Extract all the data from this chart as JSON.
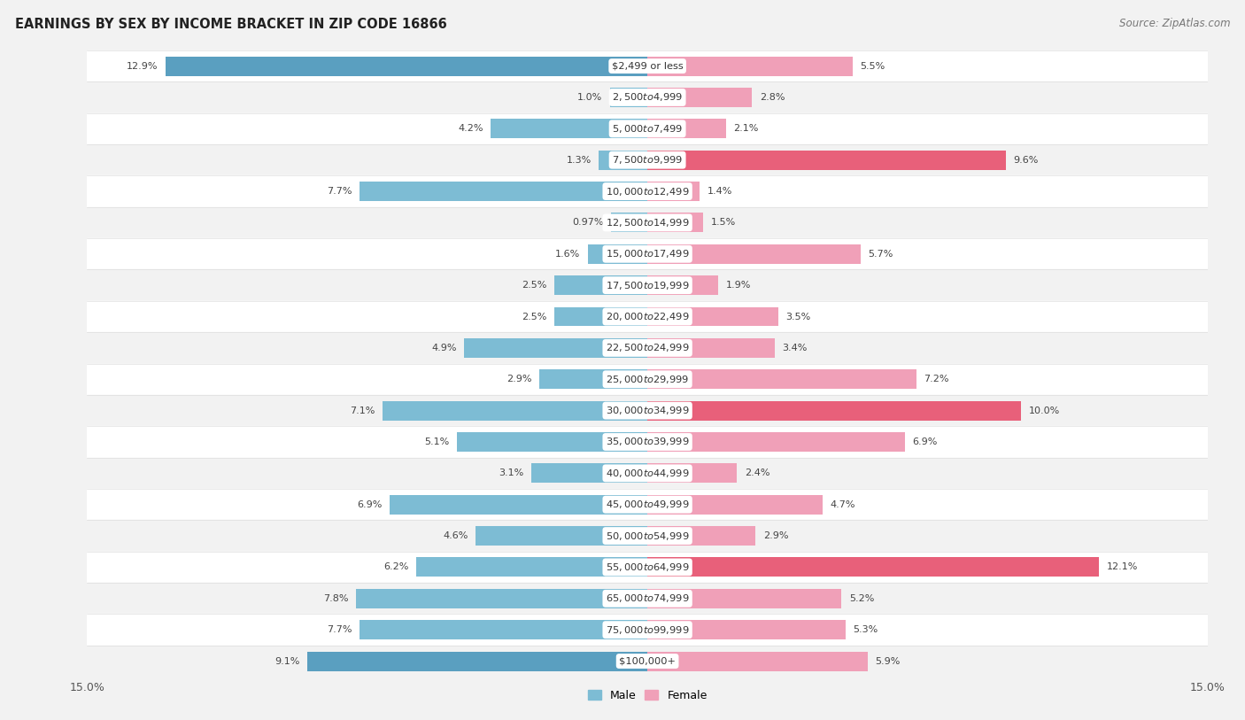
{
  "title": "EARNINGS BY SEX BY INCOME BRACKET IN ZIP CODE 16866",
  "source": "Source: ZipAtlas.com",
  "categories": [
    "$2,499 or less",
    "$2,500 to $4,999",
    "$5,000 to $7,499",
    "$7,500 to $9,999",
    "$10,000 to $12,499",
    "$12,500 to $14,999",
    "$15,000 to $17,499",
    "$17,500 to $19,999",
    "$20,000 to $22,499",
    "$22,500 to $24,999",
    "$25,000 to $29,999",
    "$30,000 to $34,999",
    "$35,000 to $39,999",
    "$40,000 to $44,999",
    "$45,000 to $49,999",
    "$50,000 to $54,999",
    "$55,000 to $64,999",
    "$65,000 to $74,999",
    "$75,000 to $99,999",
    "$100,000+"
  ],
  "male_values": [
    12.9,
    1.0,
    4.2,
    1.3,
    7.7,
    0.97,
    1.6,
    2.5,
    2.5,
    4.9,
    2.9,
    7.1,
    5.1,
    3.1,
    6.9,
    4.6,
    6.2,
    7.8,
    7.7,
    9.1
  ],
  "female_values": [
    5.5,
    2.8,
    2.1,
    9.6,
    1.4,
    1.5,
    5.7,
    1.9,
    3.5,
    3.4,
    7.2,
    10.0,
    6.9,
    2.4,
    4.7,
    2.9,
    12.1,
    5.2,
    5.3,
    5.9
  ],
  "male_color": "#7dbcd4",
  "female_color": "#f0a0b8",
  "male_highlight_color": "#5a9fc0",
  "female_highlight_color": "#e8607a",
  "male_label": "Male",
  "female_label": "Female",
  "xlim": 15.0,
  "bg_color": "#f2f2f2",
  "row_alt_color": "#ffffff",
  "title_fontsize": 10.5,
  "source_fontsize": 8.5,
  "label_fontsize": 8.0,
  "cat_fontsize": 8.2,
  "tick_fontsize": 9.0,
  "bar_height": 0.62
}
